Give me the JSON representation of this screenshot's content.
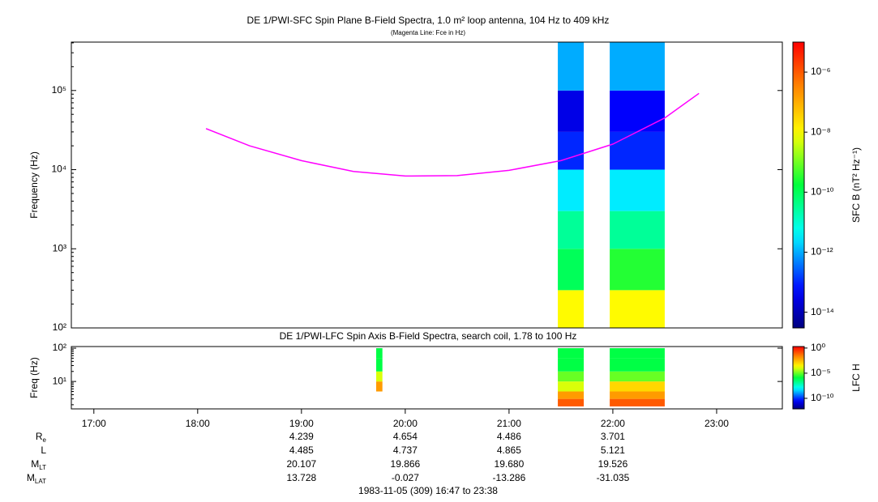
{
  "chart_data": [
    {
      "type": "spectrogram",
      "title": "DE 1/PWI-SFC  Spin Plane B-Field Spectra, 1.0 m² loop antenna, 104 Hz to 409 kHz",
      "subtitle": "(Magenta Line: Fce in Hz)",
      "ylabel": "Frequency (Hz)",
      "xlim": [
        16.783,
        23.633
      ],
      "ylim": [
        100,
        409000
      ],
      "log_y": true,
      "yticks": [
        {
          "value": 100,
          "label": "10²"
        },
        {
          "value": 1000,
          "label": "10³"
        },
        {
          "value": 10000,
          "label": "10⁴"
        },
        {
          "value": 100000,
          "label": "10⁵"
        }
      ],
      "x_bins": [
        21.47,
        21.72,
        21.97,
        22.5
      ],
      "bins": [
        100,
        300,
        1000,
        3000,
        10000,
        30000,
        100000,
        409000
      ],
      "z": [
        [
          1e-08,
          null,
          1e-08
        ],
        [
          1e-10,
          null,
          3e-10
        ],
        [
          3e-11,
          null,
          3e-11
        ],
        [
          3e-12,
          null,
          3e-12
        ],
        [
          1e-13,
          null,
          1e-13
        ],
        [
          3e-14,
          null,
          5e-14
        ],
        [
          1e-12,
          null,
          1e-12
        ]
      ],
      "colorbar": {
        "label": "SFC B (nT² Hz⁻¹)",
        "zlim": [
          3e-15,
          1e-05
        ],
        "ticks": [
          {
            "value": 1e-06,
            "label": "10⁻⁶"
          },
          {
            "value": 1e-08,
            "label": "10⁻⁸"
          },
          {
            "value": 1e-10,
            "label": "10⁻¹⁰"
          },
          {
            "value": 1e-12,
            "label": "10⁻¹²"
          },
          {
            "value": 1e-14,
            "label": "10⁻¹⁴"
          }
        ]
      },
      "line": {
        "color": "#ff00ff",
        "x": [
          18.08,
          18.5,
          19,
          19.5,
          20,
          20.5,
          21,
          21.5,
          22,
          22.5,
          22.83
        ],
        "values": [
          33000,
          20000,
          13000,
          9500,
          8300,
          8400,
          9800,
          13000,
          21000,
          45000,
          92000
        ]
      }
    },
    {
      "type": "spectrogram",
      "title": "DE 1/PWI-LFC  Spin Axis B-Field Spectra, search coil, 1.78 to 100 Hz",
      "ylabel": "Freq (Hz)",
      "xlim": [
        16.783,
        23.633
      ],
      "xticks": [
        {
          "value": 17,
          "label": "17:00"
        },
        {
          "value": 18,
          "label": "18:00"
        },
        {
          "value": 19,
          "label": "19:00"
        },
        {
          "value": 20,
          "label": "20:00"
        },
        {
          "value": 21,
          "label": "21:00"
        },
        {
          "value": 22,
          "label": "22:00"
        },
        {
          "value": 23,
          "label": "23:00"
        }
      ],
      "ylim": [
        1.5,
        112
      ],
      "log_y": true,
      "yticks": [
        {
          "value": 10,
          "label": "10¹"
        },
        {
          "value": 100,
          "label": "10²"
        }
      ],
      "x_bins": [
        19.72,
        19.78,
        21.47,
        21.72,
        21.97,
        22.5
      ],
      "bins": [
        1.78,
        3,
        5,
        10,
        20,
        50,
        100
      ],
      "z": [
        [
          null,
          null,
          0.1,
          null,
          0.1
        ],
        [
          null,
          null,
          0.01,
          null,
          0.01
        ],
        [
          0.01,
          null,
          0.0001,
          null,
          0.001
        ],
        [
          0.0001,
          null,
          1e-05,
          null,
          1e-05
        ],
        [
          1e-06,
          null,
          1e-06,
          null,
          1e-06
        ],
        [
          1e-06,
          null,
          1e-06,
          null,
          1e-06
        ]
      ],
      "colorbar": {
        "label": "LFC H",
        "zlim": [
          8e-13,
          2
        ],
        "ticks": [
          {
            "value": 1,
            "label": "10⁰"
          },
          {
            "value": 1e-05,
            "label": "10⁻⁵"
          },
          {
            "value": 1e-10,
            "label": "10⁻¹⁰"
          }
        ]
      }
    }
  ],
  "ephemeris": {
    "rows": [
      {
        "label": "R",
        "sub": "e",
        "values": [
          "4.239",
          "4.654",
          "4.486",
          "3.701"
        ]
      },
      {
        "label": "L",
        "values": [
          "4.485",
          "4.737",
          "4.865",
          "5.121"
        ]
      },
      {
        "label": "M",
        "sub": "LT",
        "values": [
          "20.107",
          "19.866",
          "19.680",
          "19.526"
        ]
      },
      {
        "label": "M",
        "sub": "LAT",
        "values": [
          "13.728",
          "-0.027",
          "-13.286",
          "-31.035"
        ]
      }
    ]
  },
  "footer": "1983-11-05 (309) 16:47 to 23:38"
}
